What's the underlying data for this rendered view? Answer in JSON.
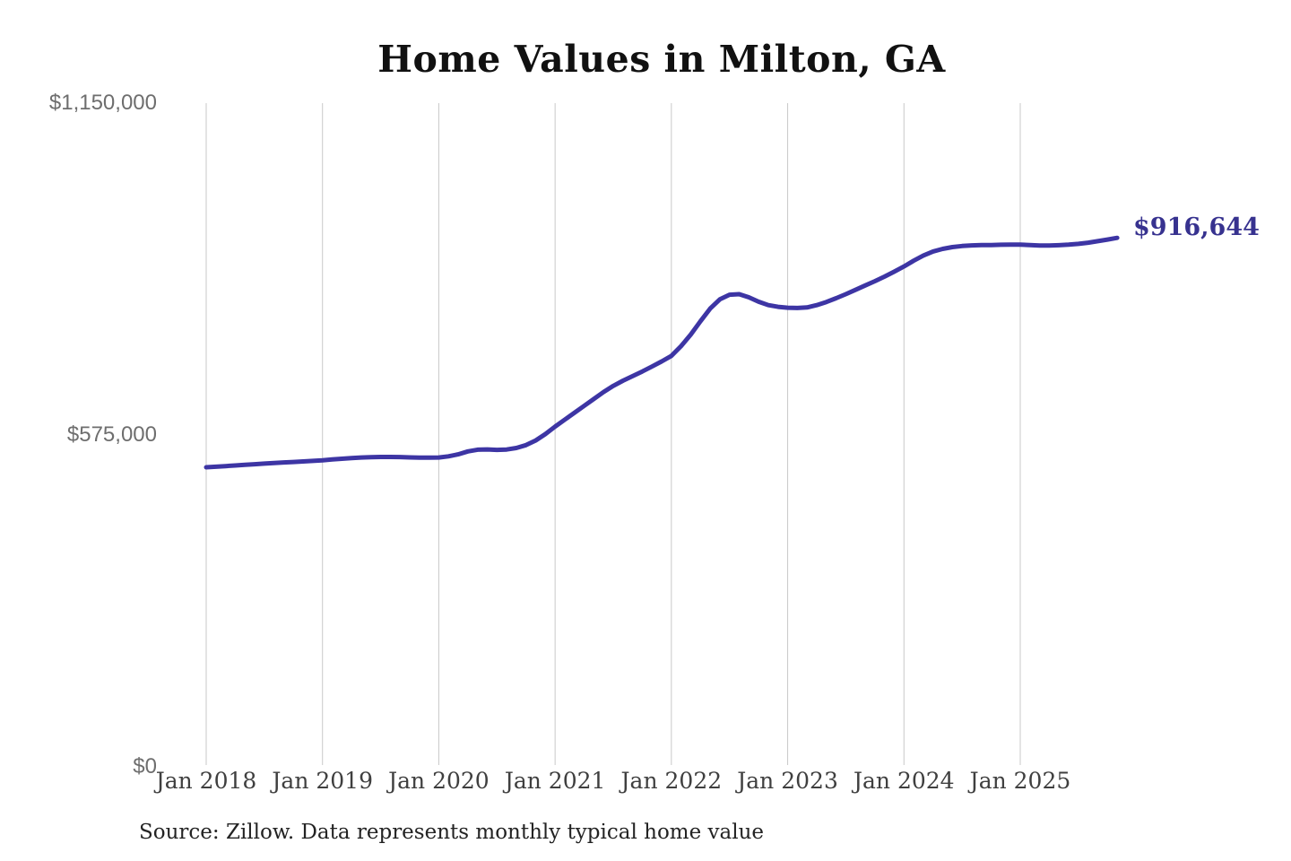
{
  "chart": {
    "title": "Home Values in Milton, GA",
    "end_label": "$916,644",
    "source": "Source: Zillow. Data represents monthly typical home value",
    "colors": {
      "line": "#3d35a4",
      "end_label": "#37328f",
      "grid": "#c9c9c9",
      "x_tick_text": "#3f3f3f",
      "y_tick_text": "#6e6e6e",
      "title_text": "#111111"
    }
  },
  "chart_data": {
    "type": "line",
    "title": "Home Values in Milton, GA",
    "series_name": "Monthly typical home value",
    "x_tick_labels": [
      "Jan 2018",
      "Jan 2019",
      "Jan 2020",
      "Jan 2021",
      "Jan 2022",
      "Jan 2023",
      "Jan 2024",
      "Jan 2025"
    ],
    "y_tick_labels": [
      "$0",
      "$575,000",
      "$1,150,000"
    ],
    "y_tick_values": [
      0,
      575000,
      1150000
    ],
    "ylim": [
      0,
      1150000
    ],
    "grid": "vertical-only",
    "legend": "none",
    "start_month": "2018-01",
    "end_month": "2025-11",
    "months_per_point": 1,
    "final_value": 916644,
    "values": [
      519000,
      520000,
      521000,
      522200,
      523300,
      524400,
      525400,
      526400,
      527400,
      528300,
      529200,
      530100,
      531000,
      532500,
      533800,
      535000,
      536000,
      536600,
      537000,
      537000,
      536700,
      536200,
      535800,
      535700,
      536000,
      538000,
      541500,
      546500,
      549500,
      550000,
      549200,
      549800,
      552500,
      557500,
      565500,
      576500,
      589500,
      601500,
      613500,
      625500,
      637500,
      649500,
      660000,
      669000,
      677000,
      685000,
      693500,
      702500,
      712000,
      729000,
      749000,
      772000,
      794000,
      810000,
      818000,
      819000,
      813500,
      806000,
      800000,
      797000,
      795500,
      795000,
      796000,
      800000,
      805500,
      812000,
      819000,
      826500,
      834000,
      841500,
      849500,
      858000,
      867000,
      877000,
      886000,
      893000,
      897500,
      900500,
      902500,
      903500,
      904000,
      904200,
      904600,
      904800,
      904800,
      904200,
      903400,
      903200,
      903800,
      904800,
      906200,
      908200,
      910800,
      913600,
      916644
    ]
  }
}
